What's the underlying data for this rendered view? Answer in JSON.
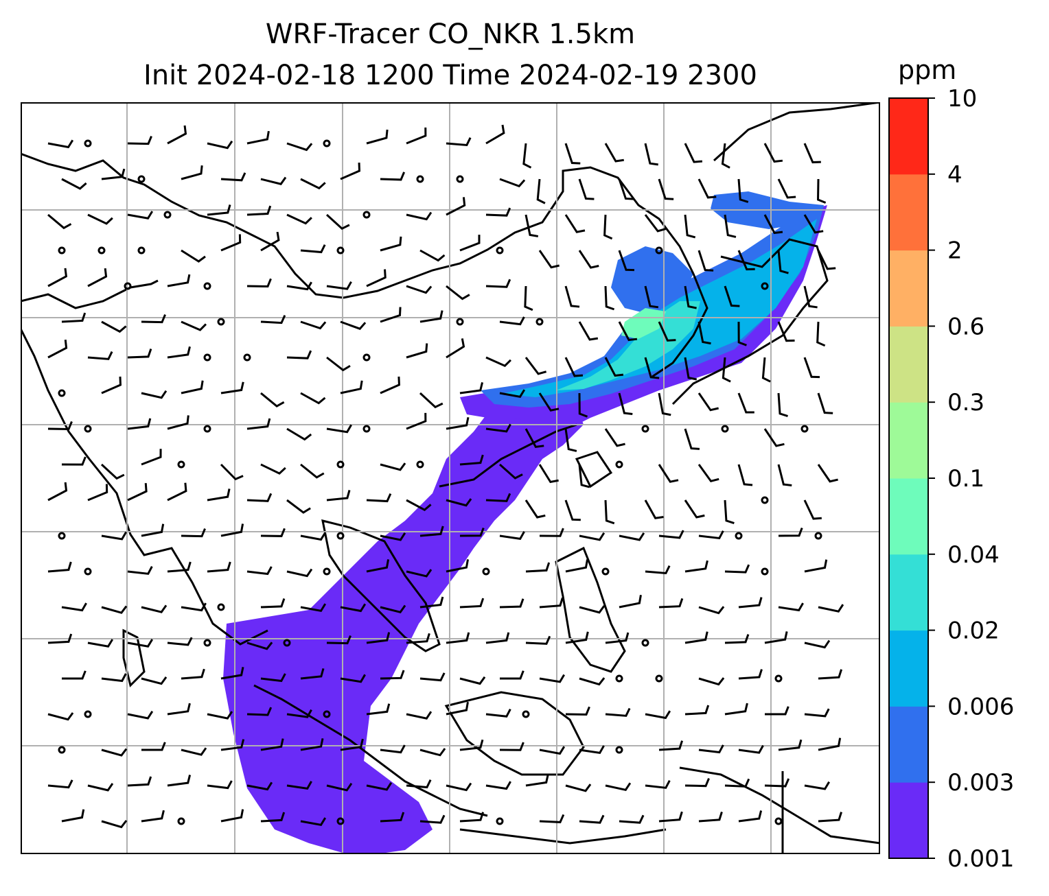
{
  "title": {
    "line1": "WRF-Tracer CO_NKR 1.5km",
    "line2": "Init 2024-02-18 1200 Time 2024-02-19 2300"
  },
  "colorbar": {
    "unit": "ppm",
    "levels": [
      "0.001",
      "0.003",
      "0.006",
      "0.02",
      "0.04",
      "0.1",
      "0.3",
      "0.6",
      "2",
      "4",
      "10"
    ],
    "colors": [
      "#6a2bf7",
      "#3070ee",
      "#05b2ea",
      "#34dfd6",
      "#6efcbb",
      "#9efa98",
      "#cde385",
      "#ffb064",
      "#ff713a",
      "#ff2818"
    ]
  },
  "map": {
    "gridlines": true,
    "plume_colors": {
      "low": "#6a2bf7",
      "mid": "#3070ee",
      "high": "#05b2ea",
      "peak": "#34dfd6",
      "max": "#6efcbb"
    },
    "wind_barbs": true,
    "calm_markers": true,
    "coastline_color": "#000000",
    "grid_color": "#b0b0b0"
  }
}
